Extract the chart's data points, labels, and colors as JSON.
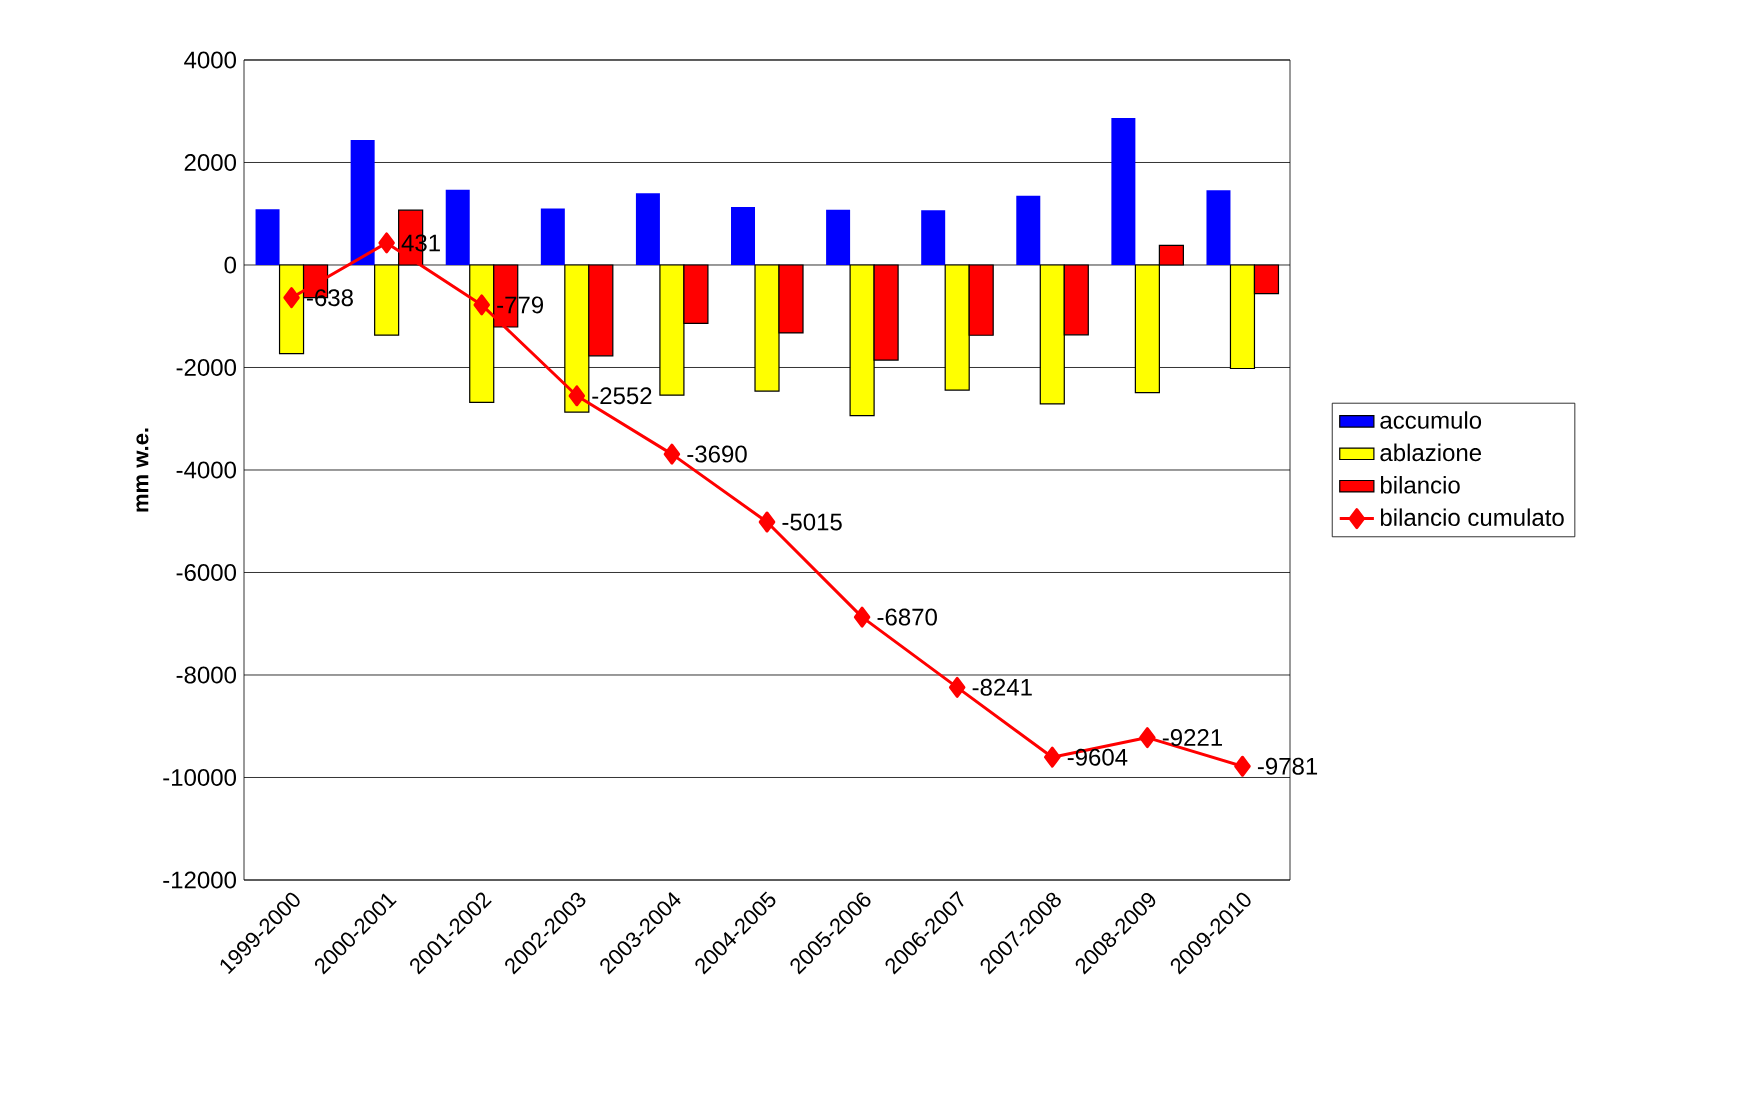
{
  "chart_data": {
    "type": "bar",
    "ylabel": "mm w.e.",
    "categories": [
      "1999-2000",
      "2000-2001",
      "2001-2002",
      "2002-2003",
      "2003-2004",
      "2004-2005",
      "2005-2006",
      "2006-2007",
      "2007-2008",
      "2008-2009",
      "2009-2010"
    ],
    "series": [
      {
        "name": "accumulo",
        "color": "#0000ff",
        "values": [
          1090,
          2440,
          1470,
          1100,
          1400,
          1130,
          1080,
          1070,
          1350,
          2870,
          1460
        ]
      },
      {
        "name": "ablazione",
        "color": "#ffff00",
        "values": [
          -1730,
          -1370,
          -2680,
          -2870,
          -2540,
          -2460,
          -2940,
          -2440,
          -2710,
          -2490,
          -2020
        ]
      },
      {
        "name": "bilancio",
        "color": "#ff0000",
        "values": [
          -638,
          1069,
          -1210,
          -1773,
          -1138,
          -1325,
          -1855,
          -1371,
          -1363,
          383,
          -560
        ]
      },
      {
        "name": "bilancio cumulato",
        "type": "line",
        "color": "#ff0000",
        "marker": "diamond",
        "line_style": "solid",
        "values": [
          -638,
          431,
          -779,
          -2552,
          -3690,
          -5015,
          -6870,
          -8241,
          -9604,
          -9221,
          -9781
        ],
        "value_labels": [
          "-638",
          "431",
          "-779",
          "-2552",
          "-3690",
          "-5015",
          "-6870",
          "-8241",
          "-9604",
          "-9221",
          "-9781"
        ]
      }
    ],
    "ylim": [
      -12000,
      4000
    ],
    "yticks": [
      -12000,
      -10000,
      -8000,
      -6000,
      -4000,
      -2000,
      0,
      2000,
      4000
    ],
    "grid": "y",
    "legend": "right"
  }
}
